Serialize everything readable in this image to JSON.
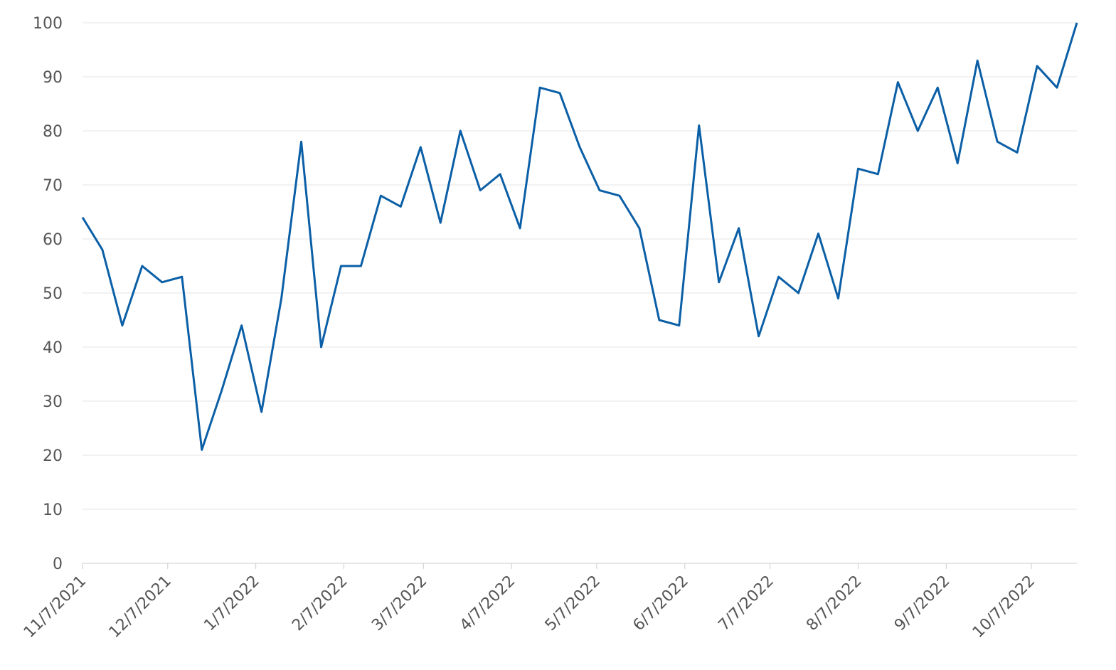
{
  "chart_data": {
    "type": "line",
    "x": [
      "2021-11-07",
      "2021-11-14",
      "2021-11-21",
      "2021-11-28",
      "2021-12-05",
      "2021-12-12",
      "2021-12-19",
      "2021-12-26",
      "2022-01-02",
      "2022-01-09",
      "2022-01-16",
      "2022-01-23",
      "2022-01-30",
      "2022-02-06",
      "2022-02-13",
      "2022-02-20",
      "2022-02-27",
      "2022-03-06",
      "2022-03-13",
      "2022-03-20",
      "2022-03-27",
      "2022-04-03",
      "2022-04-10",
      "2022-04-17",
      "2022-04-24",
      "2022-05-01",
      "2022-05-08",
      "2022-05-15",
      "2022-05-22",
      "2022-05-29",
      "2022-06-05",
      "2022-06-12",
      "2022-06-19",
      "2022-06-26",
      "2022-07-03",
      "2022-07-10",
      "2022-07-17",
      "2022-07-24",
      "2022-07-31",
      "2022-08-07",
      "2022-08-14",
      "2022-08-21",
      "2022-08-28",
      "2022-09-04",
      "2022-09-11",
      "2022-09-18",
      "2022-09-25",
      "2022-10-02",
      "2022-10-09",
      "2022-10-16",
      "2022-10-23"
    ],
    "values": [
      64,
      58,
      44,
      55,
      52,
      53,
      21,
      32,
      44,
      28,
      49,
      78,
      40,
      55,
      55,
      68,
      66,
      77,
      63,
      80,
      69,
      72,
      62,
      88,
      87,
      77,
      69,
      68,
      62,
      45,
      44,
      81,
      52,
      62,
      42,
      53,
      50,
      61,
      49,
      73,
      72,
      89,
      80,
      88,
      74,
      93,
      78,
      76,
      92,
      88,
      100
    ],
    "color": "#0b5fa6",
    "xlim": [
      "2021-11-07",
      "2022-10-23"
    ],
    "xticks": [
      {
        "value": "2021-11-07",
        "label": "11/7/2021"
      },
      {
        "value": "2021-12-07",
        "label": "12/7/2021"
      },
      {
        "value": "2022-01-07",
        "label": "1/7/2022"
      },
      {
        "value": "2022-02-07",
        "label": "2/7/2022"
      },
      {
        "value": "2022-03-07",
        "label": "3/7/2022"
      },
      {
        "value": "2022-04-07",
        "label": "4/7/2022"
      },
      {
        "value": "2022-05-07",
        "label": "5/7/2022"
      },
      {
        "value": "2022-06-07",
        "label": "6/7/2022"
      },
      {
        "value": "2022-07-07",
        "label": "7/7/2022"
      },
      {
        "value": "2022-08-07",
        "label": "8/7/2022"
      },
      {
        "value": "2022-09-07",
        "label": "9/7/2022"
      },
      {
        "value": "2022-10-07",
        "label": "10/7/2022"
      }
    ],
    "ylim": [
      0,
      100
    ],
    "yticks": [
      0,
      10,
      20,
      30,
      40,
      50,
      60,
      70,
      80,
      90,
      100
    ],
    "grid": true
  }
}
